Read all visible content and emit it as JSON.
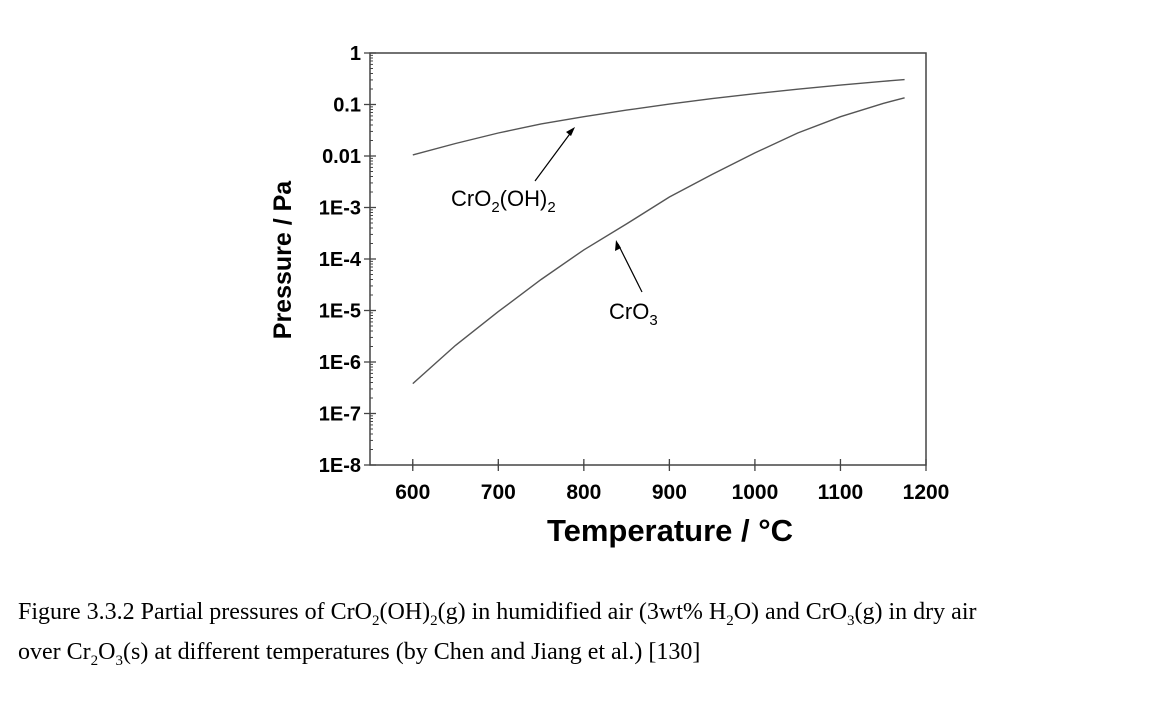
{
  "chart_data": {
    "type": "line",
    "xlabel": "Temperature / °C",
    "ylabel": "Pressure / Pa",
    "xlim": [
      550,
      1200
    ],
    "ylim": [
      1e-08,
      1
    ],
    "y_scale": "log",
    "x_ticks": [
      600,
      700,
      800,
      900,
      1000,
      1100,
      1200
    ],
    "y_ticks": [
      {
        "value": 1,
        "label": "1"
      },
      {
        "value": 0.1,
        "label": "0.1"
      },
      {
        "value": 0.01,
        "label": "0.01"
      },
      {
        "value": 0.001,
        "label": "1E-3"
      },
      {
        "value": 0.0001,
        "label": "1E-4"
      },
      {
        "value": 1e-05,
        "label": "1E-5"
      },
      {
        "value": 1e-06,
        "label": "1E-6"
      },
      {
        "value": 1e-07,
        "label": "1E-7"
      },
      {
        "value": 1e-08,
        "label": "1E-8"
      }
    ],
    "series": [
      {
        "label_main": "CrO",
        "label_sub1": "2",
        "label_mid": "(OH)",
        "label_sub2": "2",
        "color": "#555555",
        "points": [
          [
            600,
            0.0105
          ],
          [
            650,
            0.0175
          ],
          [
            700,
            0.028
          ],
          [
            750,
            0.042
          ],
          [
            800,
            0.058
          ],
          [
            850,
            0.078
          ],
          [
            900,
            0.102
          ],
          [
            950,
            0.13
          ],
          [
            1000,
            0.162
          ],
          [
            1050,
            0.198
          ],
          [
            1100,
            0.238
          ],
          [
            1150,
            0.282
          ],
          [
            1175,
            0.305
          ]
        ]
      },
      {
        "label_main": "CrO",
        "label_sub1": "3",
        "label_mid": "",
        "label_sub2": "",
        "color": "#555555",
        "points": [
          [
            600,
            3.8e-07
          ],
          [
            650,
            2.1e-06
          ],
          [
            700,
            9.5e-06
          ],
          [
            750,
            4e-05
          ],
          [
            800,
            0.00015
          ],
          [
            850,
            0.00048
          ],
          [
            900,
            0.0016
          ],
          [
            950,
            0.0044
          ],
          [
            1000,
            0.0115
          ],
          [
            1050,
            0.028
          ],
          [
            1100,
            0.058
          ],
          [
            1150,
            0.105
          ],
          [
            1175,
            0.135
          ]
        ]
      }
    ]
  },
  "caption": {
    "line1": [
      {
        "t": "Figure 3.3.2 Partial pressures of CrO"
      },
      {
        "s": "2"
      },
      {
        "t": "(OH)"
      },
      {
        "s": "2"
      },
      {
        "t": "(g) in humidified air (3wt% H"
      },
      {
        "s": "2"
      },
      {
        "t": "O) and CrO"
      },
      {
        "s": "3"
      },
      {
        "t": "(g) in dry air"
      }
    ],
    "line2": [
      {
        "t": "over Cr"
      },
      {
        "s": "2"
      },
      {
        "t": "O"
      },
      {
        "s": "3"
      },
      {
        "t": "(s) at different temperatures (by Chen and Jiang et al.) [130]"
      }
    ]
  }
}
